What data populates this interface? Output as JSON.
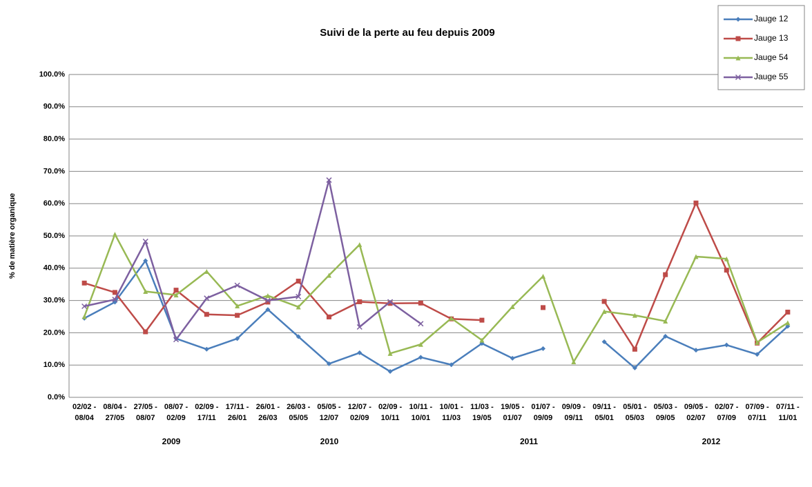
{
  "chart_data": {
    "type": "line",
    "title": "Suivi de la perte au feu depuis 2009",
    "y_label": "% de matière organique",
    "categories": [
      [
        "02/02 -",
        "08/04"
      ],
      [
        "08/04 -",
        "27/05"
      ],
      [
        "27/05 -",
        "08/07"
      ],
      [
        "08/07 -",
        "02/09"
      ],
      [
        "02/09 -",
        "17/11"
      ],
      [
        "17/11 -",
        "26/01"
      ],
      [
        "26/01 -",
        "26/03"
      ],
      [
        "26/03 -",
        "05/05"
      ],
      [
        "05/05 -",
        "12/07"
      ],
      [
        "12/07 -",
        "02/09"
      ],
      [
        "02/09 -",
        "10/11"
      ],
      [
        "10/11 -",
        "10/01"
      ],
      [
        "10/01 -",
        "11/03"
      ],
      [
        "11/03 -",
        "19/05"
      ],
      [
        "19/05 -",
        "01/07"
      ],
      [
        "01/07 -",
        "09/09"
      ],
      [
        "09/09 -",
        "09/11"
      ],
      [
        "09/11 -",
        "05/01"
      ],
      [
        "05/01 -",
        "05/03"
      ],
      [
        "05/03 -",
        "09/05"
      ],
      [
        "09/05 -",
        "02/07"
      ],
      [
        "02/07 -",
        "07/09"
      ],
      [
        "07/09 -",
        "07/11"
      ],
      [
        "07/11 -",
        "11/01"
      ]
    ],
    "x_group_labels": [
      "2009",
      "2010",
      "2011",
      "2012"
    ],
    "series": [
      {
        "name": "Jauge 12",
        "color": "#4a7ebb",
        "marker": "diamond",
        "values": [
          24.5,
          29.5,
          42.3,
          18.2,
          14.9,
          18.2,
          27.2,
          18.8,
          10.4,
          13.8,
          8.0,
          12.4,
          10.1,
          16.7,
          12.1,
          15.1,
          null,
          17.2,
          9.1,
          18.9,
          14.6,
          16.2,
          13.3,
          22.0
        ]
      },
      {
        "name": "Jauge 13",
        "color": "#be4b48",
        "marker": "square",
        "values": [
          35.4,
          32.5,
          20.3,
          33.2,
          25.7,
          25.4,
          29.5,
          36.0,
          24.9,
          29.6,
          29.1,
          29.2,
          24.3,
          23.9,
          null,
          27.8,
          null,
          29.7,
          14.9,
          38.0,
          60.2,
          39.4,
          16.8,
          26.4
        ]
      },
      {
        "name": "Jauge 54",
        "color": "#98b954",
        "marker": "triangle",
        "values": [
          25.0,
          50.5,
          32.8,
          31.7,
          39.0,
          28.3,
          31.5,
          28.0,
          37.8,
          47.3,
          13.6,
          16.4,
          24.5,
          17.7,
          28.1,
          37.5,
          11.0,
          26.6,
          25.4,
          23.6,
          43.6,
          42.9,
          17.0,
          23.1
        ]
      },
      {
        "name": "Jauge 55",
        "color": "#7d60a0",
        "marker": "x",
        "values": [
          28.2,
          30.3,
          48.3,
          17.9,
          30.7,
          34.7,
          30.0,
          31.2,
          67.3,
          21.8,
          29.6,
          22.8,
          null,
          null,
          null,
          null,
          null,
          null,
          null,
          null,
          null,
          null,
          null,
          null
        ]
      }
    ],
    "ylim": [
      0,
      100
    ],
    "yticks": [
      {
        "value": 0,
        "label": "0.0%"
      },
      {
        "value": 10,
        "label": "10.0%"
      },
      {
        "value": 20,
        "label": "20.0%"
      },
      {
        "value": 30,
        "label": "30.0%"
      },
      {
        "value": 40,
        "label": "40.0%"
      },
      {
        "value": 50,
        "label": "50.0%"
      },
      {
        "value": 60,
        "label": "60.0%"
      },
      {
        "value": 70,
        "label": "70.0%"
      },
      {
        "value": 80,
        "label": "80.0%"
      },
      {
        "value": 90,
        "label": "90.0%"
      },
      {
        "value": 100,
        "label": "100.0%"
      }
    ],
    "grid": true,
    "legend": "top-right"
  }
}
